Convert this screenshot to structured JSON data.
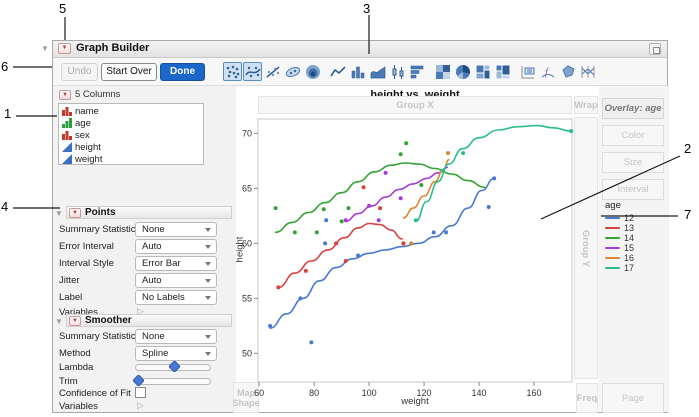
{
  "window": {
    "title": "Graph Builder"
  },
  "colors": {
    "accent": "#1b66c9",
    "triangle_red": "#c0392b",
    "slider_blue": "#4878d0"
  },
  "toolbar": {
    "undo": "Undo",
    "start_over": "Start Over",
    "done": "Done",
    "icons": [
      "points",
      "smoother",
      "line-of-fit",
      "ellipse",
      "contour",
      "line",
      "bar",
      "area",
      "box-plot",
      "histogram",
      "heatmap",
      "pie",
      "treemap",
      "mosaic",
      "caption-box",
      "formula",
      "map-shape",
      "parallel-plot"
    ],
    "selected_icons": [
      "points",
      "smoother"
    ]
  },
  "columns_panel": {
    "header": "5 Columns",
    "items": [
      {
        "label": "name",
        "type": "nominal"
      },
      {
        "label": "age",
        "type": "ordinal"
      },
      {
        "label": "sex",
        "type": "nominal"
      },
      {
        "label": "height",
        "type": "continuous"
      },
      {
        "label": "weight",
        "type": "continuous"
      }
    ]
  },
  "points_panel": {
    "title": "Points",
    "summary_statistic_label": "Summary Statistic",
    "summary_statistic_value": "None",
    "error_interval_label": "Error Interval",
    "error_interval_value": "Auto",
    "interval_style_label": "Interval Style",
    "interval_style_value": "Error Bar",
    "jitter_label": "Jitter",
    "jitter_value": "Auto",
    "label_label": "Label",
    "label_value": "No Labels",
    "variables_label": "Variables"
  },
  "smoother_panel": {
    "title": "Smoother",
    "summary_statistic_label": "Summary Statistic",
    "summary_statistic_value": "None",
    "method_label": "Method",
    "method_value": "Spline",
    "lambda_label": "Lambda",
    "lambda_value": 0.52,
    "trim_label": "Trim",
    "trim_value": 0.03,
    "confidence_label": "Confidence of Fit",
    "confidence_checked": false,
    "variables_label": "Variables"
  },
  "zones": {
    "group_x": "Group X",
    "wrap": "Wrap",
    "group_y": "Group Y",
    "map_shape": "Map Shape",
    "freq": "Freq",
    "page": "Page",
    "overlay": "Overlay: age",
    "color": "Color",
    "size": "Size",
    "interval": "Interval"
  },
  "legend": {
    "title": "age",
    "entries": [
      {
        "label": "12",
        "color": "#4878d0"
      },
      {
        "label": "13",
        "color": "#d8413d"
      },
      {
        "label": "14",
        "color": "#34a434"
      },
      {
        "label": "15",
        "color": "#a83bd6"
      },
      {
        "label": "16",
        "color": "#dd862c"
      },
      {
        "label": "17",
        "color": "#28bd8c"
      }
    ]
  },
  "chart_data": {
    "type": "scatter",
    "title": "height vs. weight",
    "xlabel": "weight",
    "ylabel": "height",
    "xlim": [
      59.6,
      173.8
    ],
    "ylim": [
      47.4,
      71.3
    ],
    "xticks": [
      60,
      80,
      100,
      120,
      140,
      160
    ],
    "yticks": [
      50,
      55,
      60,
      65,
      70
    ],
    "grid": false,
    "legend_title": "age",
    "legend_position": "right",
    "series": [
      {
        "name": "12",
        "color": "#4878d0",
        "points": [
          [
            64,
            52.5
          ],
          [
            75,
            55
          ],
          [
            79,
            51
          ],
          [
            84,
            60
          ],
          [
            84.4,
            62.1
          ],
          [
            96,
            58.9
          ],
          [
            112.5,
            60
          ],
          [
            123.5,
            61
          ],
          [
            128,
            61
          ],
          [
            143.5,
            63.3
          ],
          [
            145.5,
            65.9
          ]
        ],
        "smoother": [
          [
            64,
            52.3
          ],
          [
            70,
            53.6
          ],
          [
            76,
            55
          ],
          [
            82,
            56.6
          ],
          [
            88,
            57.8
          ],
          [
            94,
            58.6
          ],
          [
            100,
            59.1
          ],
          [
            106,
            59.4
          ],
          [
            112,
            59.7
          ],
          [
            118,
            60
          ],
          [
            124,
            60.6
          ],
          [
            130,
            61.6
          ],
          [
            136,
            63.2
          ],
          [
            141,
            64.8
          ],
          [
            145.5,
            65.9
          ]
        ]
      },
      {
        "name": "13",
        "color": "#d8413d",
        "points": [
          [
            67,
            56
          ],
          [
            77,
            57.5
          ],
          [
            88,
            60
          ],
          [
            91.5,
            58.4
          ],
          [
            98,
            65.1
          ],
          [
            104,
            63.2
          ],
          [
            112.5,
            60
          ]
        ],
        "smoother": [
          [
            67,
            56
          ],
          [
            73,
            57.3
          ],
          [
            79,
            58.4
          ],
          [
            85,
            59.4
          ],
          [
            91,
            60.5
          ],
          [
            96,
            61.4
          ],
          [
            100,
            61.8
          ],
          [
            104,
            61.7
          ],
          [
            108,
            61.2
          ],
          [
            112,
            60.4
          ]
        ]
      },
      {
        "name": "14",
        "color": "#34a434",
        "points": [
          [
            66,
            63.2
          ],
          [
            73,
            61
          ],
          [
            81,
            61
          ],
          [
            83.5,
            63.1
          ],
          [
            90,
            62
          ],
          [
            92.5,
            63.2
          ],
          [
            111.5,
            68.1
          ],
          [
            113.5,
            69.1
          ],
          [
            119,
            65.3
          ]
        ],
        "smoother": [
          [
            66,
            61
          ],
          [
            72,
            61.9
          ],
          [
            78,
            62.8
          ],
          [
            84,
            63.7
          ],
          [
            90,
            64.6
          ],
          [
            96,
            65.6
          ],
          [
            102,
            66.5
          ],
          [
            108,
            67.1
          ],
          [
            113,
            67.3
          ],
          [
            118,
            67.2
          ],
          [
            124,
            66.8
          ],
          [
            130,
            66.3
          ],
          [
            136,
            65.7
          ],
          [
            142,
            65.1
          ]
        ]
      },
      {
        "name": "15",
        "color": "#a83bd6",
        "points": [
          [
            91.5,
            62.1
          ],
          [
            100,
            63.4
          ],
          [
            103.5,
            62.1
          ],
          [
            106,
            66.4
          ],
          [
            111.5,
            64.1
          ]
        ],
        "smoother": [
          [
            91.5,
            62
          ],
          [
            96,
            62.7
          ],
          [
            101,
            63.4
          ],
          [
            106,
            64.2
          ],
          [
            111,
            64.9
          ],
          [
            116,
            65.4
          ],
          [
            121,
            65.9
          ],
          [
            125,
            66.4
          ],
          [
            128.5,
            66.9
          ]
        ]
      },
      {
        "name": "16",
        "color": "#dd862c",
        "points": [
          [
            115.3,
            60
          ],
          [
            128.7,
            68.2
          ]
        ],
        "smoother": [
          [
            112.5,
            62.3
          ],
          [
            116,
            63.2
          ],
          [
            120,
            64.3
          ],
          [
            124,
            65.6
          ],
          [
            127,
            66.7
          ],
          [
            129,
            67.6
          ]
        ]
      },
      {
        "name": "17",
        "color": "#28bd8c",
        "points": [
          [
            117,
            62.1
          ],
          [
            126.9,
            66.6
          ],
          [
            134.2,
            68.2
          ],
          [
            173.5,
            70.2
          ]
        ],
        "smoother": [
          [
            117,
            62
          ],
          [
            121,
            63.8
          ],
          [
            125,
            65.6
          ],
          [
            129,
            67.2
          ],
          [
            134,
            68.6
          ],
          [
            140,
            69.6
          ],
          [
            147,
            70.3
          ],
          [
            154,
            70.6
          ],
          [
            161,
            70.7
          ],
          [
            167,
            70.5
          ],
          [
            173.5,
            70.2
          ]
        ]
      }
    ]
  },
  "callouts": {
    "labels": [
      "1",
      "2",
      "3",
      "4",
      "5",
      "6",
      "7"
    ]
  }
}
